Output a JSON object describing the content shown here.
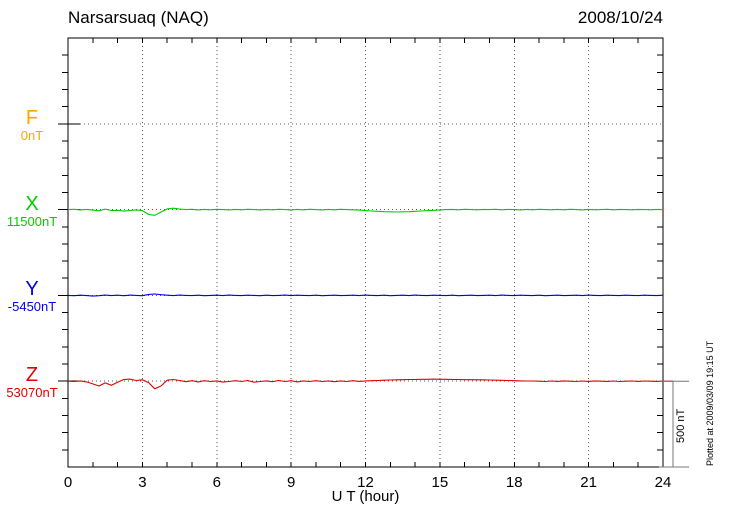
{
  "header": {
    "title": "Narsarsuaq (NAQ)",
    "date": "2008/10/24"
  },
  "chart_data": {
    "type": "line",
    "title": "Narsarsuaq (NAQ)",
    "date": "2008/10/24",
    "xlabel": "U T (hour)",
    "x_range": [
      0,
      24
    ],
    "x_tick_labels": [
      "0",
      "3",
      "6",
      "9",
      "12",
      "15",
      "18",
      "21",
      "24"
    ],
    "x_minor_tick_hours": 1,
    "x_grid_hours": 3,
    "grid_style": "dotted",
    "x_step_hours": 0.25,
    "values_unit": "nT deviation from channel baseline",
    "scale_bar": {
      "label": "500 nT",
      "span_nT": 500,
      "side_minor_tick_nT": 100
    },
    "plotted_at": "Plotted at 2009/03/09 19:15 UT",
    "series": [
      {
        "name": "F",
        "baseline_label": "0nT",
        "baseline_nT": 0,
        "color": "#FFA500",
        "trace_visible": false,
        "values": []
      },
      {
        "name": "X",
        "baseline_label": "11500nT",
        "baseline_nT": 11500,
        "color": "#00CC00",
        "trace_visible": true,
        "values": [
          0,
          2,
          -2,
          1,
          -3,
          -7,
          3,
          -5,
          -4,
          -9,
          -5,
          -2,
          -6,
          -28,
          -33,
          -14,
          4,
          8,
          3,
          0,
          2,
          -2,
          1,
          -1,
          2,
          0,
          -2,
          1,
          -1,
          2,
          0,
          -2,
          1,
          -1,
          2,
          0,
          -2,
          1,
          -1,
          2,
          0,
          -2,
          1,
          -1,
          2,
          0,
          -1,
          -3,
          -6,
          -8,
          -10,
          -12,
          -13,
          -14,
          -13,
          -12,
          -10,
          -8,
          -6,
          -4,
          -2,
          0,
          1,
          -1,
          2,
          0,
          -1,
          1,
          0,
          2,
          -1,
          1,
          0,
          -2,
          1,
          -1,
          2,
          0,
          -1,
          1,
          -1,
          2,
          0,
          -2,
          1,
          -1,
          0,
          2,
          -1,
          1,
          0,
          -1,
          1,
          0,
          -1,
          1,
          0
        ]
      },
      {
        "name": "Y",
        "baseline_label": "-5450nT",
        "baseline_nT": -5450,
        "color": "#0000EE",
        "trace_visible": true,
        "values": [
          0,
          -2,
          1,
          -1,
          -4,
          -2,
          2,
          -1,
          1,
          -2,
          2,
          0,
          -2,
          6,
          8,
          4,
          1,
          -1,
          2,
          0,
          -1,
          1,
          -2,
          0,
          1,
          -1,
          2,
          0,
          -1,
          1,
          0,
          -2,
          1,
          -1,
          0,
          2,
          -1,
          1,
          0,
          -1,
          1,
          -2,
          0,
          1,
          -1,
          0,
          1,
          -1,
          2,
          0,
          -1,
          1,
          -2,
          0,
          1,
          -1,
          2,
          0,
          -1,
          1,
          0,
          -1,
          1,
          -2,
          0,
          1,
          -1,
          0,
          1,
          -1,
          2,
          0,
          -1,
          1,
          0,
          -1,
          1,
          -2,
          0,
          1,
          -1,
          0,
          1,
          -1,
          2,
          0,
          -1,
          1,
          0,
          -1,
          1,
          0,
          -1,
          1,
          0,
          -1,
          1
        ]
      },
      {
        "name": "Z",
        "baseline_label": "53070nT",
        "baseline_nT": 53070,
        "color": "#E00000",
        "trace_visible": true,
        "values": [
          0,
          -2,
          2,
          -4,
          -16,
          -28,
          -10,
          -24,
          -6,
          10,
          12,
          4,
          8,
          -8,
          -44,
          -28,
          6,
          10,
          4,
          -3,
          3,
          -4,
          3,
          -2,
          2,
          -5,
          -2,
          3,
          -2,
          4,
          -6,
          -2,
          2,
          -3,
          4,
          -2,
          3,
          -4,
          2,
          -2,
          3,
          -2,
          2,
          -3,
          2,
          -2,
          3,
          -1,
          2,
          3,
          4,
          6,
          7,
          8,
          9,
          10,
          10,
          11,
          11,
          12,
          11,
          11,
          10,
          10,
          9,
          9,
          8,
          8,
          7,
          6,
          5,
          4,
          3,
          2,
          1,
          1,
          0,
          -2,
          1,
          -1,
          2,
          0,
          -2,
          1,
          -1,
          2,
          0,
          -1,
          1,
          -2,
          0,
          1,
          -1,
          1,
          0,
          -1,
          0
        ]
      }
    ]
  },
  "colors": {
    "frame": "#000000",
    "grid": "#555555",
    "scale_bar": "#777777",
    "background": "#FFFFFF"
  }
}
